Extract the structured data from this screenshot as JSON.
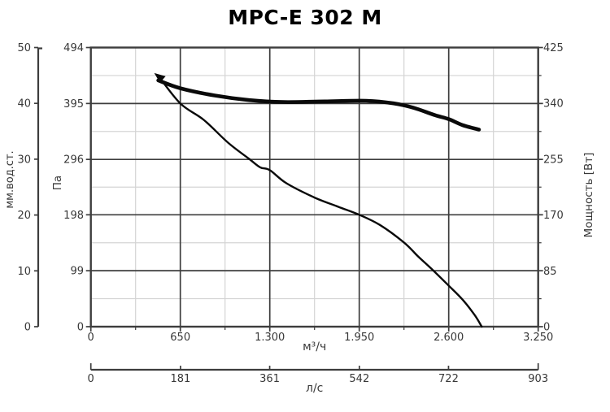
{
  "title": "MPC-E 302 M",
  "chart_data": {
    "type": "line",
    "title": "MPC-E 302 M",
    "grid": {
      "major": true,
      "minor": true
    },
    "x_axis_primary": {
      "unit": "м³/ч",
      "range": [
        0,
        3250
      ],
      "tick_values": [
        0,
        650,
        1300,
        1950,
        2600,
        3250
      ],
      "tick_labels": [
        "0",
        "650",
        "1.300",
        "1.950",
        "2.600",
        "3.250"
      ]
    },
    "x_axis_secondary": {
      "unit": "л/с",
      "range": [
        0,
        903
      ],
      "tick_values": [
        0,
        181,
        361,
        542,
        722,
        903
      ],
      "tick_labels": [
        "0",
        "181",
        "361",
        "542",
        "722",
        "903"
      ]
    },
    "y_axis_left_outer": {
      "unit": "мм.вод.ст.",
      "range": [
        0,
        50
      ],
      "tick_values": [
        0,
        10,
        20,
        30,
        40,
        50
      ],
      "tick_labels": [
        "0",
        "10",
        "20",
        "30",
        "40",
        "50"
      ]
    },
    "y_axis_left_inner": {
      "unit": "Па",
      "range": [
        0,
        494
      ],
      "tick_values": [
        0,
        99,
        198,
        296,
        395,
        494
      ],
      "tick_labels": [
        "0",
        "99",
        "198",
        "296",
        "395",
        "494"
      ]
    },
    "y_axis_right": {
      "unit": "Мощность [Вт]",
      "range": [
        0,
        425
      ],
      "tick_values": [
        0,
        85,
        170,
        255,
        340,
        425
      ],
      "tick_labels": [
        "0",
        "85",
        "170",
        "255",
        "340",
        "425"
      ]
    },
    "series": [
      {
        "name": "pressure-curve",
        "x_unit": "м³/ч",
        "y_unit": "Па",
        "y_axis": "y_axis_left_inner",
        "stroke": "thin",
        "points": [
          [
            490,
            444
          ],
          [
            650,
            395
          ],
          [
            820,
            366
          ],
          [
            1000,
            325
          ],
          [
            1150,
            297
          ],
          [
            1230,
            282
          ],
          [
            1300,
            277
          ],
          [
            1420,
            254
          ],
          [
            1630,
            228
          ],
          [
            1800,
            212
          ],
          [
            1950,
            198
          ],
          [
            2100,
            180
          ],
          [
            2275,
            149
          ],
          [
            2375,
            125
          ],
          [
            2490,
            99
          ],
          [
            2590,
            75
          ],
          [
            2700,
            48
          ],
          [
            2790,
            20
          ],
          [
            2840,
            0
          ]
        ]
      },
      {
        "name": "power-curve",
        "x_unit": "м³/ч",
        "y_unit": "Вт",
        "y_axis": "y_axis_right",
        "stroke": "thick",
        "points": [
          [
            490,
            375
          ],
          [
            650,
            363
          ],
          [
            900,
            352
          ],
          [
            1150,
            345
          ],
          [
            1400,
            342
          ],
          [
            1700,
            343
          ],
          [
            2000,
            344
          ],
          [
            2200,
            340
          ],
          [
            2350,
            333
          ],
          [
            2500,
            322
          ],
          [
            2600,
            316
          ],
          [
            2700,
            307
          ],
          [
            2820,
            300
          ]
        ]
      }
    ],
    "colors": {
      "curve": "#0a0a0a",
      "grid_major": "#3d3d3d",
      "grid_minor": "#d4d4d4",
      "text": "#383838",
      "title": "#000000"
    }
  }
}
